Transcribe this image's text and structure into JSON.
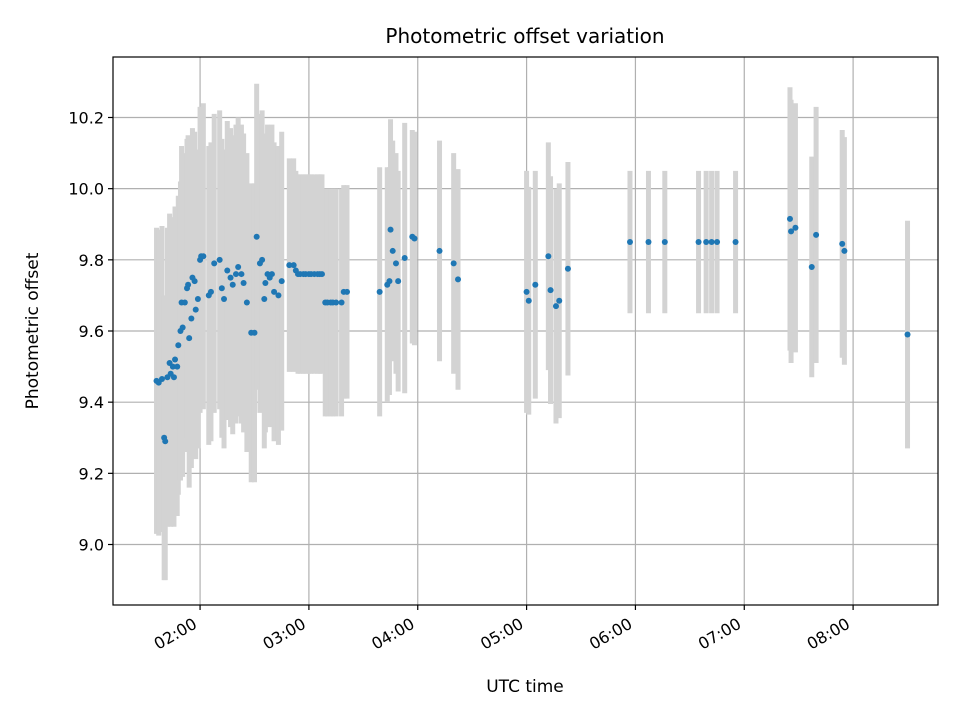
{
  "chart_data": {
    "type": "scatter",
    "title": "Photometric offset variation",
    "xlabel": "UTC time",
    "ylabel": "Photometric offset",
    "x_unit": "time (hours, UTC)",
    "xlim": [
      1.2,
      8.78
    ],
    "ylim": [
      8.83,
      10.37
    ],
    "x_ticks": [
      2,
      3,
      4,
      5,
      6,
      7,
      8
    ],
    "x_tick_labels": [
      "02:00",
      "03:00",
      "04:00",
      "05:00",
      "06:00",
      "07:00",
      "08:00"
    ],
    "y_ticks": [
      9.0,
      9.2,
      9.4,
      9.6,
      9.8,
      10.0,
      10.2
    ],
    "y_tick_labels": [
      "9.0",
      "9.2",
      "9.4",
      "9.6",
      "9.8",
      "10.0",
      "10.2"
    ],
    "grid": true,
    "legend": false,
    "colors": {
      "points": "#1f77b4",
      "error_bars": "#d3d3d3",
      "grid": "#b0b0b0"
    },
    "series": [
      {
        "points": [
          [
            1.6,
            9.46,
            0.43
          ],
          [
            1.62,
            9.455,
            0.43
          ],
          [
            1.65,
            9.465,
            0.43
          ],
          [
            1.67,
            9.3,
            0.4
          ],
          [
            1.68,
            9.29,
            0.39
          ],
          [
            1.7,
            9.47,
            0.42
          ],
          [
            1.72,
            9.51,
            0.42
          ],
          [
            1.73,
            9.48,
            0.43
          ],
          [
            1.75,
            9.5,
            0.42
          ],
          [
            1.76,
            9.47,
            0.42
          ],
          [
            1.77,
            9.52,
            0.43
          ],
          [
            1.79,
            9.5,
            0.42
          ],
          [
            1.8,
            9.56,
            0.42
          ],
          [
            1.82,
            9.6,
            0.42
          ],
          [
            1.83,
            9.68,
            0.44
          ],
          [
            1.84,
            9.61,
            0.42
          ],
          [
            1.86,
            9.68,
            0.42
          ],
          [
            1.88,
            9.72,
            0.42
          ],
          [
            1.89,
            9.73,
            0.42
          ],
          [
            1.9,
            9.58,
            0.42
          ],
          [
            1.92,
            9.635,
            0.42
          ],
          [
            1.93,
            9.75,
            0.42
          ],
          [
            1.95,
            9.74,
            0.42
          ],
          [
            1.96,
            9.66,
            0.42
          ],
          [
            1.98,
            9.69,
            0.42
          ],
          [
            2.0,
            9.8,
            0.43
          ],
          [
            2.01,
            9.81,
            0.42
          ],
          [
            2.03,
            9.81,
            0.43
          ],
          [
            2.08,
            9.7,
            0.42
          ],
          [
            2.1,
            9.71,
            0.42
          ],
          [
            2.13,
            9.79,
            0.42
          ],
          [
            2.18,
            9.8,
            0.42
          ],
          [
            2.2,
            9.72,
            0.42
          ],
          [
            2.22,
            9.69,
            0.42
          ],
          [
            2.25,
            9.77,
            0.42
          ],
          [
            2.28,
            9.75,
            0.42
          ],
          [
            2.3,
            9.73,
            0.42
          ],
          [
            2.33,
            9.76,
            0.42
          ],
          [
            2.35,
            9.78,
            0.42
          ],
          [
            2.38,
            9.76,
            0.42
          ],
          [
            2.4,
            9.735,
            0.42
          ],
          [
            2.43,
            9.68,
            0.42
          ],
          [
            2.47,
            9.595,
            0.42
          ],
          [
            2.5,
            9.595,
            0.42
          ],
          [
            2.52,
            9.865,
            0.43
          ],
          [
            2.55,
            9.79,
            0.42
          ],
          [
            2.57,
            9.8,
            0.42
          ],
          [
            2.59,
            9.69,
            0.42
          ],
          [
            2.6,
            9.735,
            0.42
          ],
          [
            2.62,
            9.76,
            0.42
          ],
          [
            2.64,
            9.75,
            0.42
          ],
          [
            2.66,
            9.76,
            0.42
          ],
          [
            2.68,
            9.71,
            0.42
          ],
          [
            2.72,
            9.7,
            0.42
          ],
          [
            2.75,
            9.74,
            0.42
          ],
          [
            2.82,
            9.785,
            0.3
          ],
          [
            2.86,
            9.785,
            0.3
          ],
          [
            2.88,
            9.77,
            0.28
          ],
          [
            2.9,
            9.76,
            0.28
          ],
          [
            2.92,
            9.76,
            0.28
          ],
          [
            2.95,
            9.76,
            0.28
          ],
          [
            2.97,
            9.76,
            0.28
          ],
          [
            3.0,
            9.76,
            0.28
          ],
          [
            3.02,
            9.76,
            0.28
          ],
          [
            3.05,
            9.76,
            0.28
          ],
          [
            3.08,
            9.76,
            0.28
          ],
          [
            3.1,
            9.76,
            0.28
          ],
          [
            3.12,
            9.76,
            0.28
          ],
          [
            3.15,
            9.68,
            0.32
          ],
          [
            3.17,
            9.68,
            0.32
          ],
          [
            3.2,
            9.68,
            0.32
          ],
          [
            3.22,
            9.68,
            0.32
          ],
          [
            3.25,
            9.68,
            0.32
          ],
          [
            3.3,
            9.68,
            0.32
          ],
          [
            3.32,
            9.71,
            0.3
          ],
          [
            3.35,
            9.71,
            0.3
          ],
          [
            3.65,
            9.71,
            0.35
          ],
          [
            3.72,
            9.73,
            0.33
          ],
          [
            3.74,
            9.74,
            0.32
          ],
          [
            3.75,
            9.885,
            0.31
          ],
          [
            3.77,
            9.825,
            0.31
          ],
          [
            3.8,
            9.79,
            0.31
          ],
          [
            3.82,
            9.74,
            0.31
          ],
          [
            3.88,
            9.805,
            0.38
          ],
          [
            3.95,
            9.865,
            0.3
          ],
          [
            3.97,
            9.86,
            0.3
          ],
          [
            4.2,
            9.825,
            0.31
          ],
          [
            4.33,
            9.79,
            0.31
          ],
          [
            4.37,
            9.745,
            0.31
          ],
          [
            5.0,
            9.71,
            0.34
          ],
          [
            5.02,
            9.685,
            0.32
          ],
          [
            5.08,
            9.73,
            0.32
          ],
          [
            5.2,
            9.81,
            0.32
          ],
          [
            5.22,
            9.715,
            0.32
          ],
          [
            5.27,
            9.67,
            0.33
          ],
          [
            5.3,
            9.685,
            0.33
          ],
          [
            5.38,
            9.775,
            0.3
          ],
          [
            5.95,
            9.85,
            0.2
          ],
          [
            6.12,
            9.85,
            0.2
          ],
          [
            6.27,
            9.85,
            0.2
          ],
          [
            6.58,
            9.85,
            0.2
          ],
          [
            6.65,
            9.85,
            0.2
          ],
          [
            6.7,
            9.85,
            0.2
          ],
          [
            6.75,
            9.85,
            0.2
          ],
          [
            6.92,
            9.85,
            0.2
          ],
          [
            7.42,
            9.915,
            0.37
          ],
          [
            7.43,
            9.88,
            0.37
          ],
          [
            7.47,
            9.89,
            0.35
          ],
          [
            7.62,
            9.78,
            0.31
          ],
          [
            7.66,
            9.87,
            0.36
          ],
          [
            7.9,
            9.845,
            0.32
          ],
          [
            7.92,
            9.825,
            0.32
          ],
          [
            8.5,
            9.59,
            0.32
          ]
        ]
      }
    ]
  }
}
